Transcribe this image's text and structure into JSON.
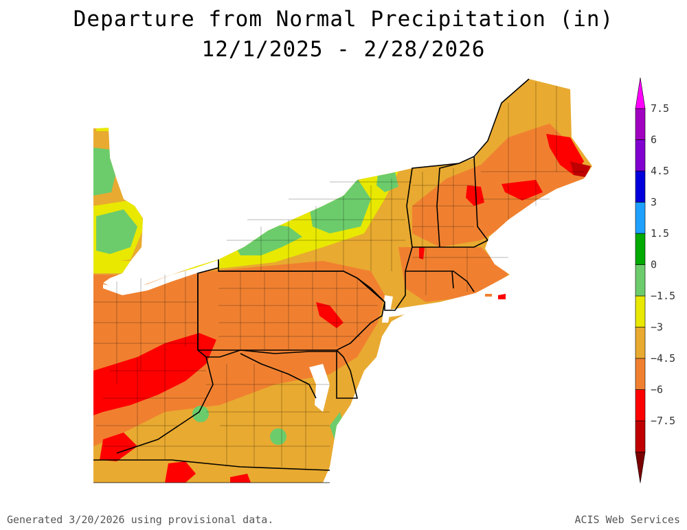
{
  "title": "Departure from Normal Precipitation (in)",
  "subtitle": "12/1/2025 - 2/28/2026",
  "footer_left": "Generated 3/20/2026 using provisional data.",
  "footer_right": "ACIS Web Services",
  "legend": {
    "colors": [
      "#7a0000",
      "#c00000",
      "#ff0000",
      "#f08030",
      "#e8aa30",
      "#e8e800",
      "#6ccc6c",
      "#00aa00",
      "#1ea0ff",
      "#0000dd",
      "#8000d0",
      "#a000c0",
      "#ff00ff"
    ],
    "labels": [
      "7.5",
      "6",
      "4.5",
      "3",
      "1.5",
      "0",
      "−1.5",
      "−3",
      "−4.5",
      "−6",
      "−7.5"
    ]
  },
  "map": {
    "water_color": "#ffffff",
    "boundary_color": "#000000"
  }
}
